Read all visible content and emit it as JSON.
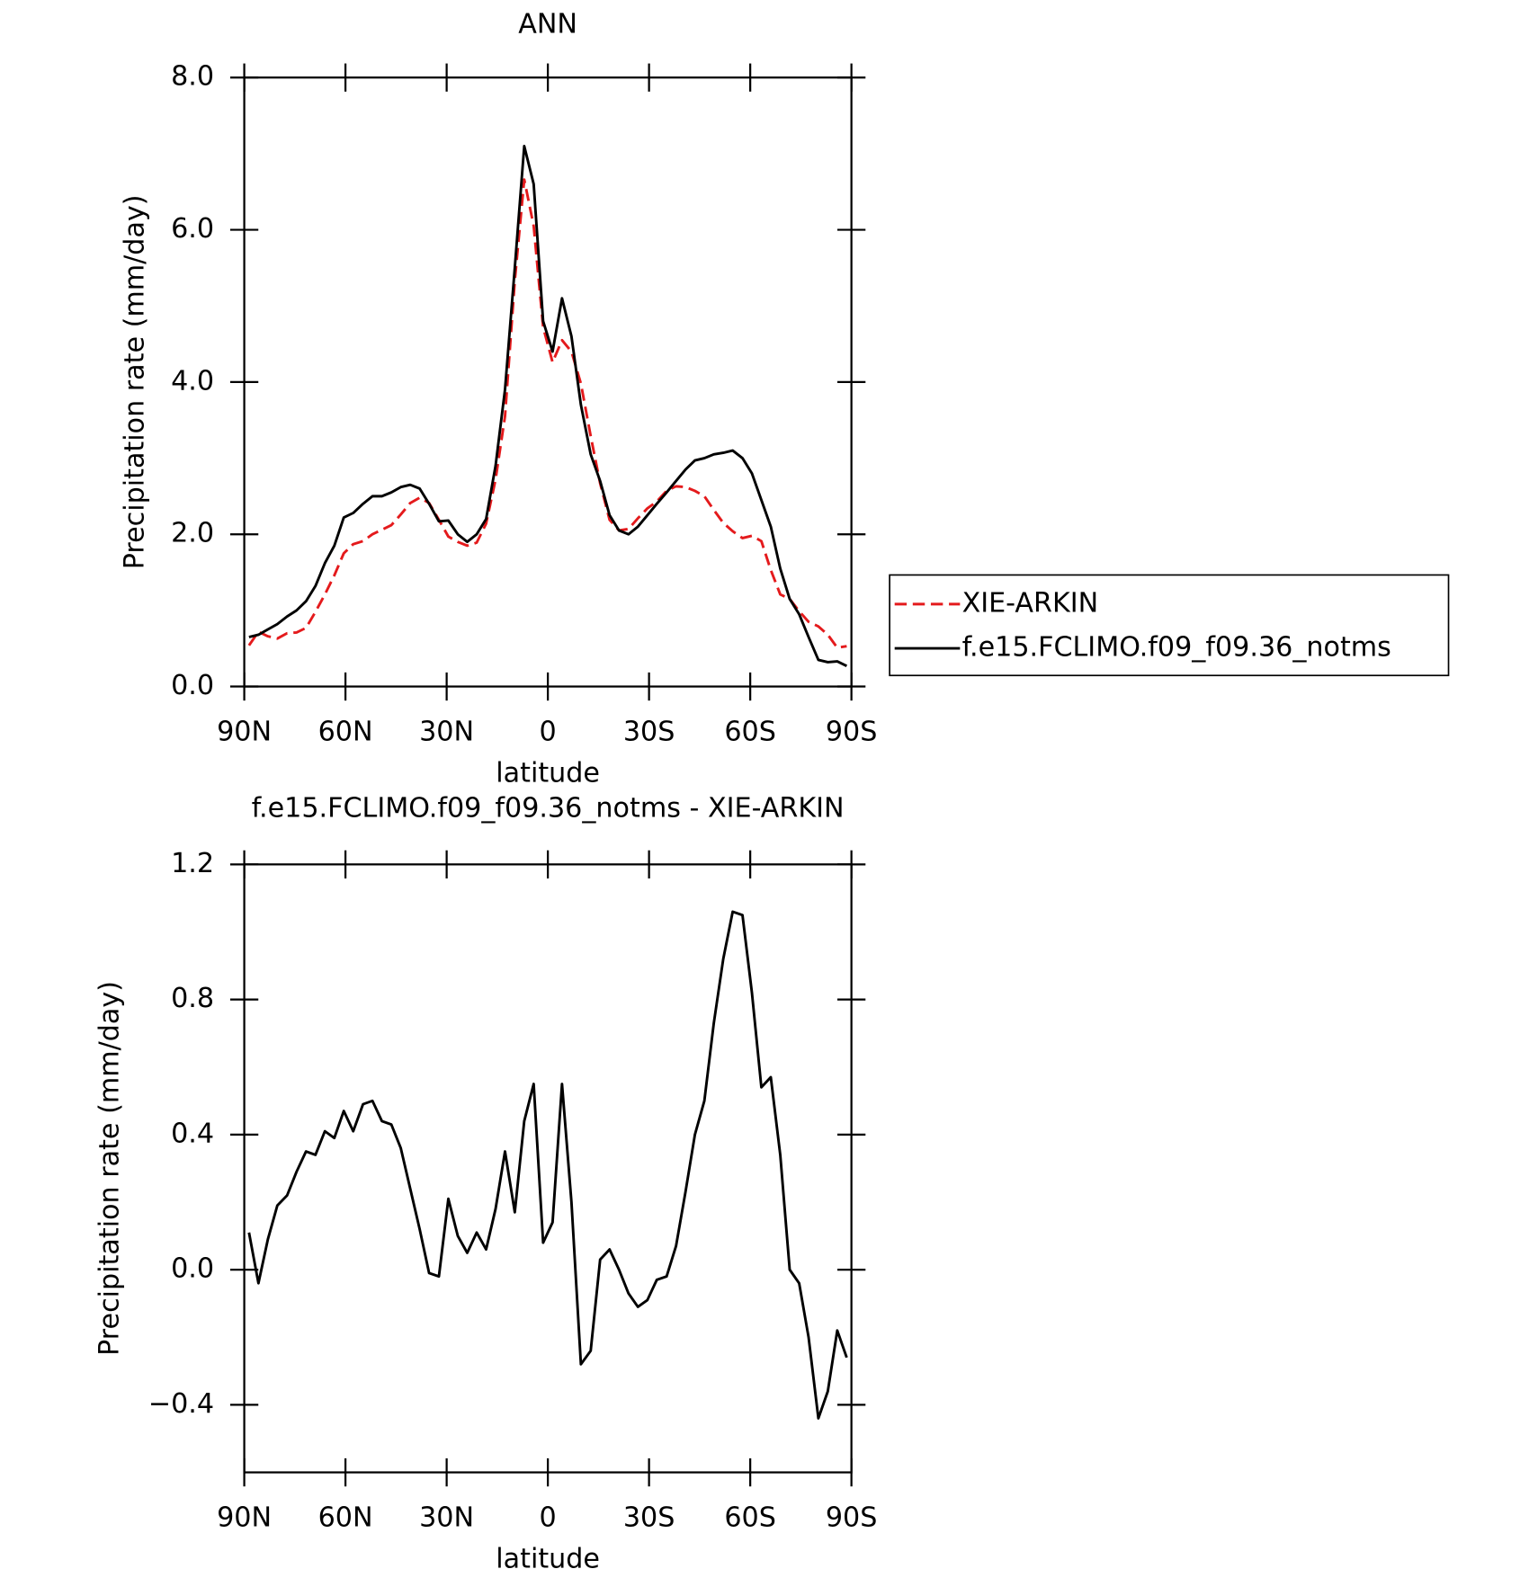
{
  "chart_data": [
    {
      "type": "line",
      "title": "ANN",
      "xlabel": "latitude",
      "ylabel": "Precipitation rate (mm/day)",
      "x": [
        88.6,
        85.8,
        83.0,
        80.2,
        77.3,
        74.5,
        71.7,
        68.9,
        66.1,
        63.3,
        60.5,
        57.7,
        54.8,
        52.0,
        49.2,
        46.4,
        43.6,
        40.8,
        38.0,
        35.2,
        32.3,
        29.5,
        26.7,
        23.9,
        21.1,
        18.3,
        15.5,
        12.7,
        9.8,
        7.0,
        4.2,
        1.4,
        -1.4,
        -4.2,
        -7.0,
        -9.8,
        -12.7,
        -15.5,
        -18.3,
        -21.1,
        -23.9,
        -26.7,
        -29.5,
        -32.3,
        -35.2,
        -38.0,
        -40.8,
        -43.6,
        -46.4,
        -49.2,
        -52.0,
        -54.8,
        -57.7,
        -60.5,
        -63.3,
        -66.1,
        -68.9,
        -71.7,
        -74.5,
        -77.3,
        -80.2,
        -83.0,
        -85.8,
        -88.6
      ],
      "series": [
        {
          "name": "XIE-ARKIN",
          "color": "#e41a1c",
          "linestyle": "dashed",
          "values": [
            0.54,
            0.72,
            0.66,
            0.63,
            0.7,
            0.71,
            0.77,
            0.98,
            1.21,
            1.46,
            1.75,
            1.87,
            1.91,
            2.0,
            2.06,
            2.12,
            2.26,
            2.41,
            2.48,
            2.41,
            2.19,
            1.97,
            1.9,
            1.85,
            1.89,
            2.14,
            2.72,
            3.55,
            5.33,
            6.66,
            6.05,
            4.72,
            4.26,
            4.55,
            4.4,
            3.98,
            3.29,
            2.67,
            2.19,
            2.05,
            2.07,
            2.21,
            2.34,
            2.43,
            2.57,
            2.63,
            2.62,
            2.57,
            2.5,
            2.32,
            2.15,
            2.04,
            1.95,
            1.98,
            1.91,
            1.53,
            1.21,
            1.15,
            0.99,
            0.85,
            0.79,
            0.68,
            0.51,
            0.53
          ]
        },
        {
          "name": "f.e15.FCLIMO.f09_f09.36_notms",
          "color": "#000000",
          "linestyle": "solid",
          "values": [
            0.65,
            0.68,
            0.75,
            0.82,
            0.92,
            1.0,
            1.12,
            1.32,
            1.62,
            1.85,
            2.22,
            2.28,
            2.4,
            2.5,
            2.5,
            2.55,
            2.62,
            2.65,
            2.6,
            2.4,
            2.17,
            2.18,
            2.0,
            1.9,
            2.0,
            2.2,
            2.9,
            3.9,
            5.5,
            7.1,
            6.6,
            4.8,
            4.4,
            5.1,
            4.6,
            3.7,
            3.05,
            2.7,
            2.25,
            2.05,
            2.0,
            2.1,
            2.25,
            2.4,
            2.55,
            2.7,
            2.85,
            2.97,
            3.0,
            3.05,
            3.07,
            3.1,
            3.0,
            2.8,
            2.45,
            2.1,
            1.55,
            1.15,
            0.95,
            0.65,
            0.35,
            0.32,
            0.33,
            0.27
          ]
        }
      ],
      "xlim": [
        90,
        -90
      ],
      "xticks": [
        {
          "value": 90,
          "label": "90N"
        },
        {
          "value": 60,
          "label": "60N"
        },
        {
          "value": 30,
          "label": "30N"
        },
        0,
        {
          "value": -30,
          "label": "30S"
        },
        {
          "value": -60,
          "label": "60S"
        },
        {
          "value": -90,
          "label": "90S"
        }
      ],
      "ylim": [
        0,
        8
      ],
      "yticks": [
        {
          "value": 0,
          "label": "0.0"
        },
        {
          "value": 2,
          "label": "2.0"
        },
        {
          "value": 4,
          "label": "4.0"
        },
        {
          "value": 6,
          "label": "6.0"
        },
        {
          "value": 8,
          "label": "8.0"
        }
      ],
      "legend": "right"
    },
    {
      "type": "line",
      "title": "f.e15.FCLIMO.f09_f09.36_notms - XIE-ARKIN",
      "xlabel": "latitude",
      "ylabel": "Precipitation rate (mm/day)",
      "x": [
        88.6,
        85.8,
        83.0,
        80.2,
        77.3,
        74.5,
        71.7,
        68.9,
        66.1,
        63.3,
        60.5,
        57.7,
        54.8,
        52.0,
        49.2,
        46.4,
        43.6,
        40.8,
        38.0,
        35.2,
        32.3,
        29.5,
        26.7,
        23.9,
        21.1,
        18.3,
        15.5,
        12.7,
        9.8,
        7.0,
        4.2,
        1.4,
        -1.4,
        -4.2,
        -7.0,
        -9.8,
        -12.7,
        -15.5,
        -18.3,
        -21.1,
        -23.9,
        -26.7,
        -29.5,
        -32.3,
        -35.2,
        -38.0,
        -40.8,
        -43.6,
        -46.4,
        -49.2,
        -52.0,
        -54.8,
        -57.7,
        -60.5,
        -63.3,
        -66.1,
        -68.9,
        -71.7,
        -74.5,
        -77.3,
        -80.2,
        -83.0,
        -85.8,
        -88.6
      ],
      "series": [
        {
          "color": "#000000",
          "linestyle": "solid",
          "values": [
            0.11,
            -0.04,
            0.09,
            0.19,
            0.22,
            0.29,
            0.35,
            0.34,
            0.41,
            0.39,
            0.47,
            0.41,
            0.49,
            0.5,
            0.44,
            0.43,
            0.36,
            0.24,
            0.12,
            -0.01,
            -0.02,
            0.21,
            0.1,
            0.05,
            0.11,
            0.06,
            0.18,
            0.35,
            0.17,
            0.44,
            0.55,
            0.08,
            0.14,
            0.55,
            0.2,
            -0.28,
            -0.24,
            0.03,
            0.06,
            0.0,
            -0.07,
            -0.11,
            -0.09,
            -0.03,
            -0.02,
            0.07,
            0.23,
            0.4,
            0.5,
            0.73,
            0.92,
            1.06,
            1.05,
            0.82,
            0.54,
            0.57,
            0.34,
            0.0,
            -0.04,
            -0.2,
            -0.44,
            -0.36,
            -0.18,
            -0.26
          ]
        }
      ],
      "xlim": [
        90,
        -90
      ],
      "xticks": [
        {
          "value": 90,
          "label": "90N"
        },
        {
          "value": 60,
          "label": "60N"
        },
        {
          "value": 30,
          "label": "30N"
        },
        0,
        {
          "value": -30,
          "label": "30S"
        },
        {
          "value": -60,
          "label": "60S"
        },
        {
          "value": -90,
          "label": "90S"
        }
      ],
      "ylim": [
        -0.6,
        1.2
      ],
      "yticks": [
        {
          "value": -0.4,
          "label": "−0.4"
        },
        {
          "value": 0,
          "label": "0.0"
        },
        {
          "value": 0.4,
          "label": "0.4"
        },
        {
          "value": 0.8,
          "label": "0.8"
        },
        {
          "value": 1.2,
          "label": "1.2"
        }
      ]
    }
  ]
}
